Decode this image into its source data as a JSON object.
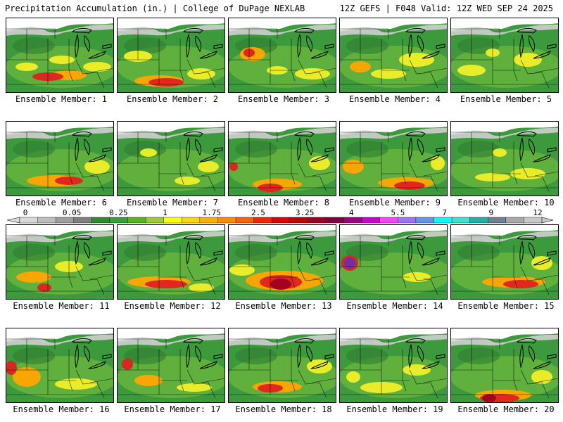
{
  "header": {
    "left": "Precipitation Accumulation (in.) | College of DuPage NEXLAB",
    "right": "12Z GEFS | F048 Valid: 12Z WED SEP 24 2025"
  },
  "panels": [
    {
      "label": "Ensemble Member: 1"
    },
    {
      "label": "Ensemble Member: 2"
    },
    {
      "label": "Ensemble Member: 3"
    },
    {
      "label": "Ensemble Member: 4"
    },
    {
      "label": "Ensemble Member: 5"
    },
    {
      "label": "Ensemble Member: 6"
    },
    {
      "label": "Ensemble Member: 7"
    },
    {
      "label": "Ensemble Member: 8"
    },
    {
      "label": "Ensemble Member: 9"
    },
    {
      "label": "Ensemble Member: 10"
    },
    {
      "label": "Ensemble Member: 11"
    },
    {
      "label": "Ensemble Member: 12"
    },
    {
      "label": "Ensemble Member: 13"
    },
    {
      "label": "Ensemble Member: 14"
    },
    {
      "label": "Ensemble Member: 15"
    },
    {
      "label": "Ensemble Member: 16"
    },
    {
      "label": "Ensemble Member: 17"
    },
    {
      "label": "Ensemble Member: 18"
    },
    {
      "label": "Ensemble Member: 19"
    },
    {
      "label": "Ensemble Member: 20"
    }
  ],
  "legend": {
    "tick_labels": [
      "0",
      "0.05",
      "0.25",
      "1",
      "1.75",
      "2.5",
      "3.25",
      "4",
      "5.5",
      "7",
      "9",
      "12"
    ],
    "colors": [
      "#d9d9d9",
      "#bdbdbd",
      "#9e9e9e",
      "#7f7f7f",
      "#2e8b2e",
      "#3aa03a",
      "#56b41e",
      "#9acd32",
      "#ffff00",
      "#ffd700",
      "#ffb000",
      "#ff8c00",
      "#ff6000",
      "#ff2000",
      "#e00000",
      "#c00000",
      "#a00020",
      "#800040",
      "#a00080",
      "#d000d0",
      "#ff40ff",
      "#a070ff",
      "#6495ed",
      "#00ffff",
      "#40e0d0",
      "#20b2aa",
      "#708090",
      "#a9a9a9",
      "#c8c8c8"
    ]
  },
  "map_colors": {
    "background": "#ffffff",
    "trace": "#cfcfcf",
    "low_gray": "#9e9e9e",
    "green_dark": "#2e7d32",
    "green": "#3c9a3c",
    "green_light": "#7cc23c",
    "yellow": "#f0f028",
    "orange": "#ffa500",
    "red": "#e02020",
    "dark_red": "#a00020",
    "purple": "#6a2fb0",
    "borders": "#000000"
  }
}
